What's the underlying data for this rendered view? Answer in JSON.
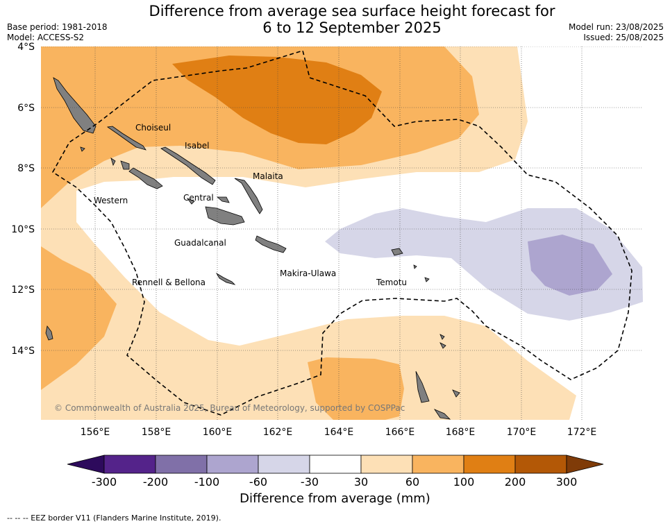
{
  "title": {
    "line1": "Difference from average sea surface height forecast for",
    "line2": "6 to 12 September 2025"
  },
  "meta": {
    "base_period": "Base period: 1981-2018",
    "model": "Model: ACCESS-S2",
    "model_run": "Model run: 23/08/2025",
    "issued": "Issued: 25/08/2025"
  },
  "map": {
    "latitude_labels": [
      "4°S",
      "6°S",
      "8°S",
      "10°S",
      "12°S",
      "14°S"
    ],
    "longitude_labels": [
      "156°E",
      "158°E",
      "160°E",
      "162°E",
      "164°E",
      "166°E",
      "168°E",
      "170°E",
      "172°E"
    ],
    "place_names": [
      "Choiseul",
      "Isabel",
      "Malaita",
      "Western",
      "Central",
      "Guadalcanal",
      "Makira-Ulawa",
      "Rennell & Bellona",
      "Temotu"
    ],
    "copyright": "© Commonwealth of Australia 2025, Bureau of Meteorology, supported by COSPPac"
  },
  "colorbar": {
    "ticks": [
      "-300",
      "-200",
      "-100",
      "-60",
      "-30",
      "30",
      "60",
      "100",
      "200",
      "300"
    ],
    "colors": [
      "#2d0a5c",
      "#54238a",
      "#8070a8",
      "#ada5cf",
      "#d6d6e8",
      "#ffffff",
      "#fde0b6",
      "#f9b45f",
      "#e07f14",
      "#b35806",
      "#7f3b08"
    ],
    "title": "Difference from average (mm)"
  },
  "eez_note": "-- -- -- EEZ border V11 (Flanders Marine Institute, 2019)."
}
